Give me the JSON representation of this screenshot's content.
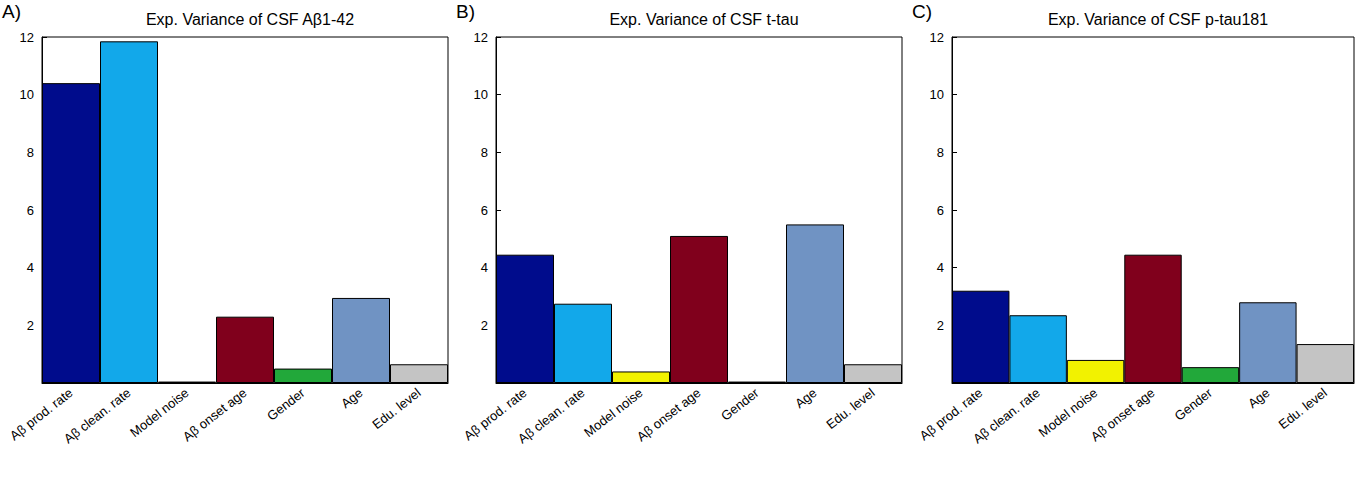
{
  "chart_data": [
    {
      "type": "bar",
      "annotation": "A)",
      "title": "Exp. Variance of CSF Aβ1-42",
      "categories": [
        "Aβ prod. rate",
        "Aβ clean. rate",
        "Model noise",
        "Aβ onset age",
        "Gender",
        "Age",
        "Edu. level"
      ],
      "values": [
        10.4,
        11.85,
        0.05,
        2.3,
        0.5,
        2.95,
        0.65
      ],
      "colors": [
        "#000c8c",
        "#12a8ea",
        "#f2f200",
        "#80001c",
        "#22a83a",
        "#7093c3",
        "#c4c4c4"
      ],
      "ylim": [
        0,
        12
      ],
      "yticks": [
        2,
        4,
        6,
        8,
        10,
        12
      ],
      "grid": false
    },
    {
      "type": "bar",
      "annotation": "B)",
      "title": "Exp. Variance of CSF t-tau",
      "categories": [
        "Aβ prod. rate",
        "Aβ clean. rate",
        "Model noise",
        "Aβ onset age",
        "Gender",
        "Age",
        "Edu. level"
      ],
      "values": [
        4.45,
        2.75,
        0.4,
        5.1,
        0.05,
        5.5,
        0.65
      ],
      "colors": [
        "#000c8c",
        "#12a8ea",
        "#f2f200",
        "#80001c",
        "#22a83a",
        "#7093c3",
        "#c4c4c4"
      ],
      "ylim": [
        0,
        12
      ],
      "yticks": [
        2,
        4,
        6,
        8,
        10,
        12
      ],
      "grid": false
    },
    {
      "type": "bar",
      "annotation": "C)",
      "title": "Exp. Variance of CSF p-tau181",
      "categories": [
        "Aβ prod. rate",
        "Aβ clean. rate",
        "Model noise",
        "Aβ onset age",
        "Gender",
        "Age",
        "Edu. level"
      ],
      "values": [
        3.2,
        2.35,
        0.8,
        4.45,
        0.55,
        2.8,
        1.35
      ],
      "colors": [
        "#000c8c",
        "#12a8ea",
        "#f2f200",
        "#80001c",
        "#22a83a",
        "#7093c3",
        "#c4c4c4"
      ],
      "ylim": [
        0,
        12
      ],
      "yticks": [
        2,
        4,
        6,
        8,
        10,
        12
      ],
      "grid": false
    }
  ]
}
